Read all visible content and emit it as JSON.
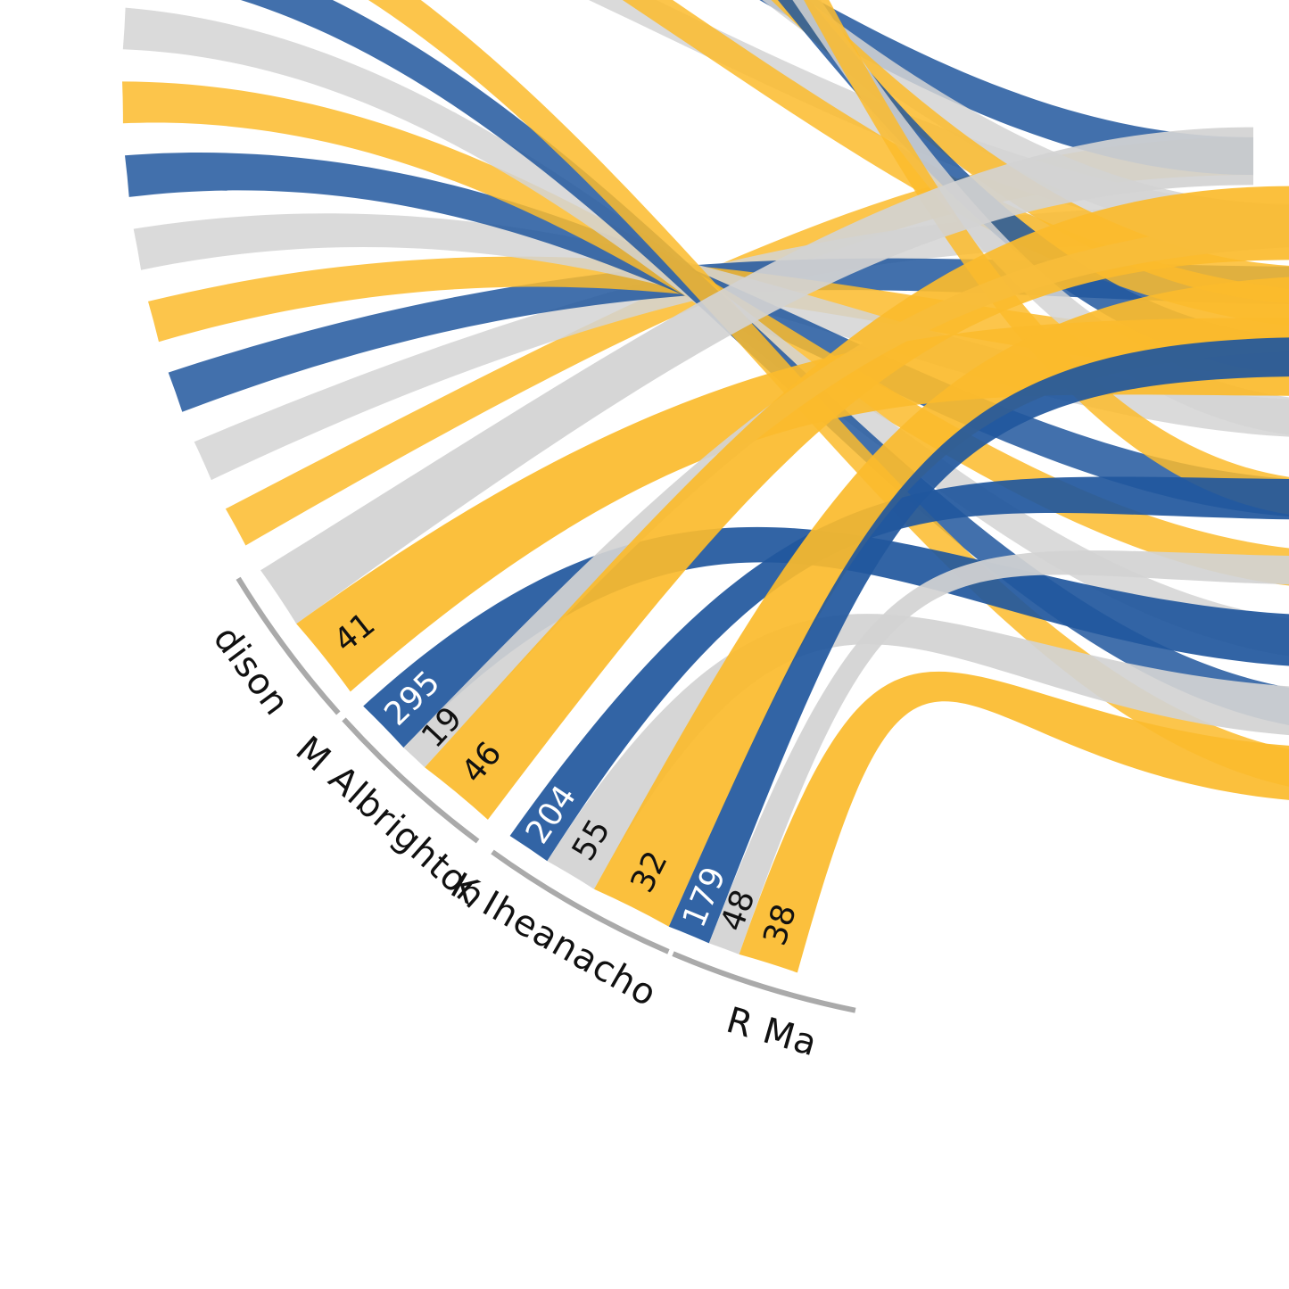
{
  "colors": {
    "blue": "#21579d",
    "grey": "#d3d3d3",
    "yellow": "#fbbb2c",
    "arc": "#aaaaaa",
    "label_dark": "#111111",
    "label_light": "#ffffff"
  },
  "chart_data": {
    "type": "chord",
    "players": [
      {
        "name": "dison",
        "ribbons": [
          {
            "color": "grey",
            "value": ""
          },
          {
            "color": "yellow",
            "value": "41"
          }
        ]
      },
      {
        "name": "M Albrighton",
        "ribbons": [
          {
            "color": "blue",
            "value": "295"
          },
          {
            "color": "grey",
            "value": "19"
          },
          {
            "color": "yellow",
            "value": "46"
          }
        ]
      },
      {
        "name": "K Iheanacho",
        "ribbons": [
          {
            "color": "blue",
            "value": "204"
          },
          {
            "color": "grey",
            "value": "55"
          },
          {
            "color": "yellow",
            "value": "32"
          }
        ]
      },
      {
        "name": "R Ma",
        "ribbons": [
          {
            "color": "blue",
            "value": "179"
          },
          {
            "color": "grey",
            "value": "48"
          },
          {
            "color": "yellow",
            "value": "38"
          }
        ]
      }
    ]
  }
}
